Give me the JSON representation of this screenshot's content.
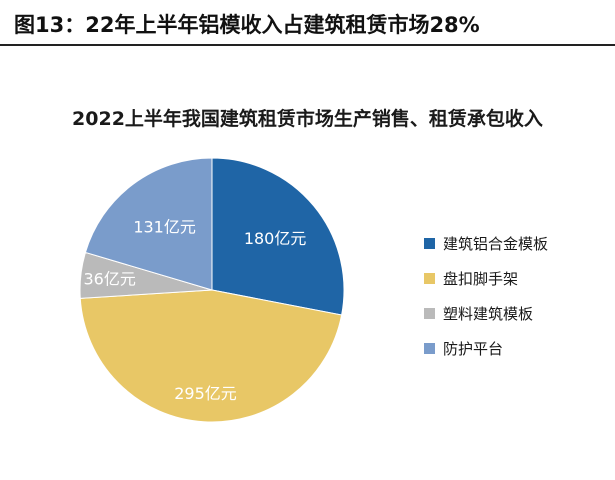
{
  "figure": {
    "title": "图13：22年上半年铝模收入占建筑租赁市场28%"
  },
  "chart_data": {
    "type": "pie",
    "title": "2022上半年我国建筑租赁市场生产销售、租赁承包收入",
    "unit": "亿元",
    "categories": [
      "建筑铝合金模板",
      "盘扣脚手架",
      "塑料建筑模板",
      "防护平台"
    ],
    "values": [
      180,
      295,
      36,
      131
    ],
    "data_labels": [
      "180亿元",
      "295亿元",
      "36亿元",
      "131亿元"
    ],
    "colors": [
      "#1F65A6",
      "#E8C766",
      "#BABABA",
      "#7A9CCB"
    ],
    "label_colors": [
      "#ffffff",
      "#ffffff",
      "#ffffff",
      "#ffffff"
    ],
    "legend": "right",
    "start_angle_deg": 0,
    "direction": "clockwise"
  }
}
